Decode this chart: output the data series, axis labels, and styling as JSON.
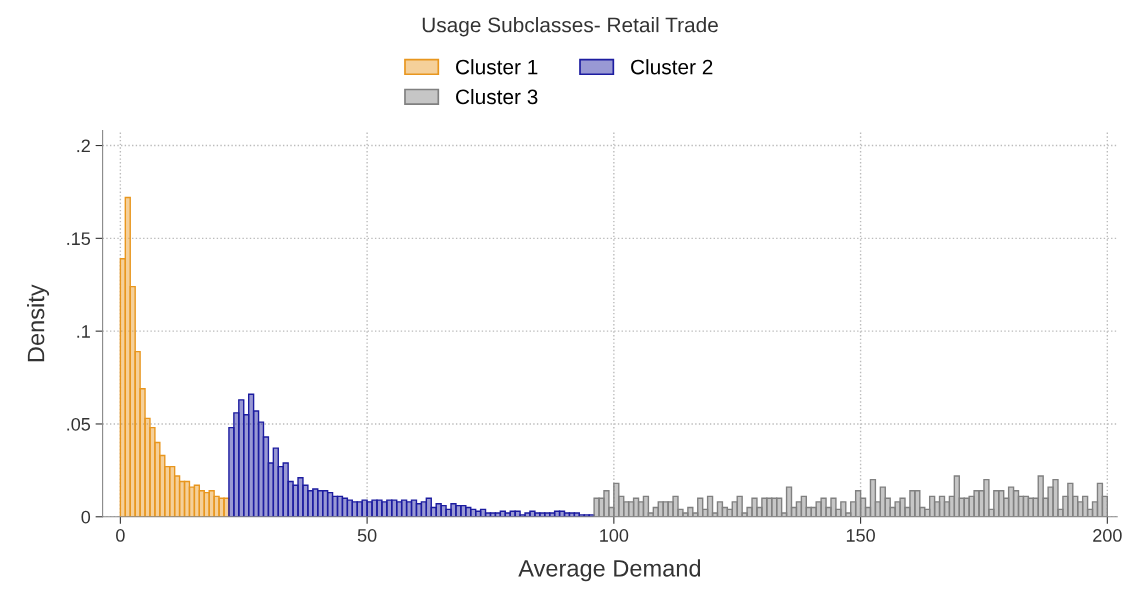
{
  "chart_data": {
    "type": "histogram",
    "title": "Usage Subclasses- Retail Trade",
    "xlabel": "Average Demand",
    "ylabel": "Density",
    "xlim": [
      -3.6,
      202
    ],
    "ylim": [
      0,
      0.208
    ],
    "xticks": [
      0,
      50,
      100,
      150,
      200
    ],
    "yticks": [
      0,
      {
        "value": 0.05,
        "label": ".05"
      },
      {
        "value": 0.1,
        "label": ".1"
      },
      {
        "value": 0.15,
        "label": ".15"
      },
      {
        "value": 0.2,
        "label": ".2"
      }
    ],
    "grid": true,
    "legend": "top",
    "bins": [
      0,
      1,
      2,
      3,
      4,
      5,
      6,
      7,
      8,
      9,
      10,
      11,
      12,
      13,
      14,
      15,
      16,
      17,
      18,
      19,
      20,
      21,
      22,
      23,
      24,
      25,
      26,
      27,
      28,
      29,
      30,
      31,
      32,
      33,
      34,
      35,
      36,
      37,
      38,
      39,
      40,
      41,
      42,
      43,
      44,
      45,
      46,
      47,
      48,
      49,
      50,
      51,
      52,
      53,
      54,
      55,
      56,
      57,
      58,
      59,
      60,
      61,
      62,
      63,
      64,
      65,
      66,
      67,
      68,
      69,
      70,
      71,
      72,
      73,
      74,
      75,
      76,
      77,
      78,
      79,
      80,
      81,
      82,
      83,
      84,
      85,
      86,
      87,
      88,
      89,
      90,
      91,
      92,
      93,
      94,
      95,
      96,
      97,
      98,
      99,
      100,
      101,
      102,
      103,
      104,
      105,
      106,
      107,
      108,
      109,
      110,
      111,
      112,
      113,
      114,
      115,
      116,
      117,
      118,
      119,
      120,
      121,
      122,
      123,
      124,
      125,
      126,
      127,
      128,
      129,
      130,
      131,
      132,
      133,
      134,
      135,
      136,
      137,
      138,
      139,
      140,
      141,
      142,
      143,
      144,
      145,
      146,
      147,
      148,
      149,
      150,
      151,
      152,
      153,
      154,
      155,
      156,
      157,
      158,
      159,
      160,
      161,
      162,
      163,
      164,
      165,
      166,
      167,
      168,
      169,
      170,
      171,
      172,
      173,
      174,
      175,
      176,
      177,
      178,
      179,
      180,
      181,
      182,
      183,
      184,
      185,
      186,
      187,
      188,
      189,
      190,
      191,
      192,
      193,
      194,
      195,
      196,
      197,
      198,
      199,
      200
    ],
    "series": [
      {
        "name": "Cluster 1",
        "color": "#e8961e",
        "values": [
          0.139,
          0.172,
          0.124,
          0.089,
          0.069,
          0.053,
          0.048,
          0.04,
          0.033,
          0.027,
          0.027,
          0.022,
          0.019,
          0.019,
          0.016,
          0.017,
          0.014,
          0.013,
          0.014,
          0.011,
          0.01,
          0.01,
          null,
          null,
          null,
          null,
          null,
          null,
          null,
          null,
          null,
          null,
          null,
          null,
          null,
          null,
          null,
          null,
          null,
          null,
          null,
          null,
          null,
          null,
          null,
          null,
          null,
          null,
          null,
          null,
          null,
          null,
          null,
          null,
          null,
          null,
          null,
          null,
          null,
          null,
          null,
          null,
          null,
          null,
          null,
          null,
          null,
          null,
          null,
          null,
          null,
          null,
          null,
          null,
          null,
          null,
          null,
          null,
          null,
          null,
          null,
          null,
          null,
          null,
          null,
          null,
          null,
          null,
          null,
          null,
          null,
          null,
          null,
          null,
          null,
          null,
          null,
          null,
          null,
          null,
          null,
          null,
          null,
          null,
          null,
          null,
          null,
          null,
          null,
          null,
          null,
          null,
          null,
          null,
          null,
          null,
          null,
          null,
          null,
          null,
          null,
          null,
          null,
          null,
          null,
          null,
          null,
          null,
          null,
          null,
          null,
          null,
          null,
          null,
          null,
          null,
          null,
          null,
          null,
          null,
          null,
          null,
          null,
          null,
          null,
          null,
          null,
          null,
          null,
          null,
          null,
          null,
          null,
          null,
          null,
          null,
          null,
          null,
          null,
          null,
          null,
          null,
          null,
          null,
          null,
          null,
          null,
          null,
          null,
          null,
          null,
          null,
          null,
          null,
          null,
          null,
          null,
          null,
          null,
          null,
          null,
          null,
          null,
          null,
          null,
          null,
          null,
          null,
          null,
          null,
          null,
          null,
          null,
          null,
          null,
          null,
          null,
          null,
          null,
          null
        ]
      },
      {
        "name": "Cluster 2",
        "color": "#1c1ca0",
        "values": [
          null,
          null,
          null,
          null,
          null,
          null,
          null,
          null,
          null,
          null,
          null,
          null,
          null,
          null,
          null,
          null,
          null,
          null,
          null,
          null,
          null,
          null,
          0.048,
          0.056,
          0.063,
          0.055,
          0.066,
          0.057,
          0.051,
          0.043,
          0.029,
          0.037,
          0.027,
          0.029,
          0.019,
          0.017,
          0.021,
          0.017,
          0.014,
          0.015,
          0.014,
          0.014,
          0.013,
          0.011,
          0.011,
          0.01,
          0.009,
          0.008,
          0.008,
          0.009,
          0.008,
          0.009,
          0.009,
          0.008,
          0.009,
          0.009,
          0.008,
          0.009,
          0.008,
          0.009,
          0.007,
          0.008,
          0.01,
          0.005,
          0.007,
          0.006,
          0.004,
          0.007,
          0.006,
          0.006,
          0.005,
          0.004,
          0.003,
          0.004,
          0.002,
          0.002,
          0.002,
          0.003,
          0.002,
          0.003,
          0.003,
          0.001,
          0.002,
          0.003,
          0.002,
          0.002,
          0.002,
          0.002,
          0.003,
          0.003,
          0.002,
          0.002,
          0.002,
          0.001,
          0.001,
          0.001,
          null,
          null,
          null,
          null,
          null,
          null,
          null,
          null,
          null,
          null,
          null,
          null,
          null,
          null,
          null,
          null,
          null,
          null,
          null,
          null,
          null,
          null,
          null,
          null,
          null,
          null,
          null,
          null,
          null,
          null,
          null,
          null,
          null,
          null,
          null,
          null,
          null,
          null,
          null,
          null,
          null,
          null,
          null,
          null,
          null,
          null,
          null,
          null,
          null,
          null,
          null,
          null,
          null,
          null,
          null,
          null,
          null,
          null,
          null,
          null,
          null,
          null,
          null,
          null,
          null,
          null,
          null,
          null,
          null,
          null,
          null,
          null,
          null,
          null,
          null,
          null,
          null,
          null,
          null,
          null,
          null,
          null,
          null,
          null,
          null,
          null,
          null,
          null,
          null,
          null,
          null,
          null,
          null,
          null,
          null,
          null,
          null,
          null,
          null,
          null,
          null,
          null,
          null,
          null
        ]
      },
      {
        "name": "Cluster 3",
        "color": "#808080",
        "values": [
          null,
          null,
          null,
          null,
          null,
          null,
          null,
          null,
          null,
          null,
          null,
          null,
          null,
          null,
          null,
          null,
          null,
          null,
          null,
          null,
          null,
          null,
          null,
          null,
          null,
          null,
          null,
          null,
          null,
          null,
          null,
          null,
          null,
          null,
          null,
          null,
          null,
          null,
          null,
          null,
          null,
          null,
          null,
          null,
          null,
          null,
          null,
          null,
          null,
          null,
          null,
          null,
          null,
          null,
          null,
          null,
          null,
          null,
          null,
          null,
          null,
          null,
          null,
          null,
          null,
          null,
          null,
          null,
          null,
          null,
          null,
          null,
          null,
          null,
          null,
          null,
          null,
          null,
          null,
          null,
          null,
          null,
          null,
          null,
          null,
          null,
          null,
          null,
          null,
          null,
          null,
          null,
          null,
          null,
          null,
          null,
          0.01,
          0.01,
          0.014,
          0.005,
          0.018,
          0.011,
          0.008,
          0.008,
          0.01,
          0.008,
          0.011,
          0.002,
          0.005,
          0.008,
          0.008,
          0.008,
          0.011,
          0.004,
          0.002,
          0.005,
          0.002,
          0.01,
          0.004,
          0.011,
          0.002,
          0.008,
          0.005,
          0.004,
          0.008,
          0.011,
          0.002,
          0.005,
          0.01,
          0.005,
          0.01,
          0.01,
          0.01,
          0.01,
          0.002,
          0.016,
          0.005,
          0.008,
          0.011,
          0.005,
          0.005,
          0.008,
          0.01,
          0.005,
          0.01,
          0.004,
          0.008,
          0.002,
          0.008,
          0.014,
          0.01,
          0.005,
          0.02,
          0.008,
          0.016,
          0.01,
          0.005,
          0.008,
          0.01,
          0.005,
          0.014,
          0.014,
          0.005,
          0.004,
          0.011,
          0.008,
          0.011,
          0.008,
          0.011,
          0.022,
          0.01,
          0.01,
          0.011,
          0.014,
          0.014,
          0.02,
          0.004,
          0.014,
          0.014,
          0.01,
          0.016,
          0.014,
          0.011,
          0.011,
          0.01,
          0.01,
          0.022,
          0.01,
          0.016,
          0.02,
          0.004,
          0.011,
          0.018,
          0.011,
          0.008,
          0.011,
          0.004,
          0.008,
          0.018,
          0.011
        ]
      }
    ]
  }
}
